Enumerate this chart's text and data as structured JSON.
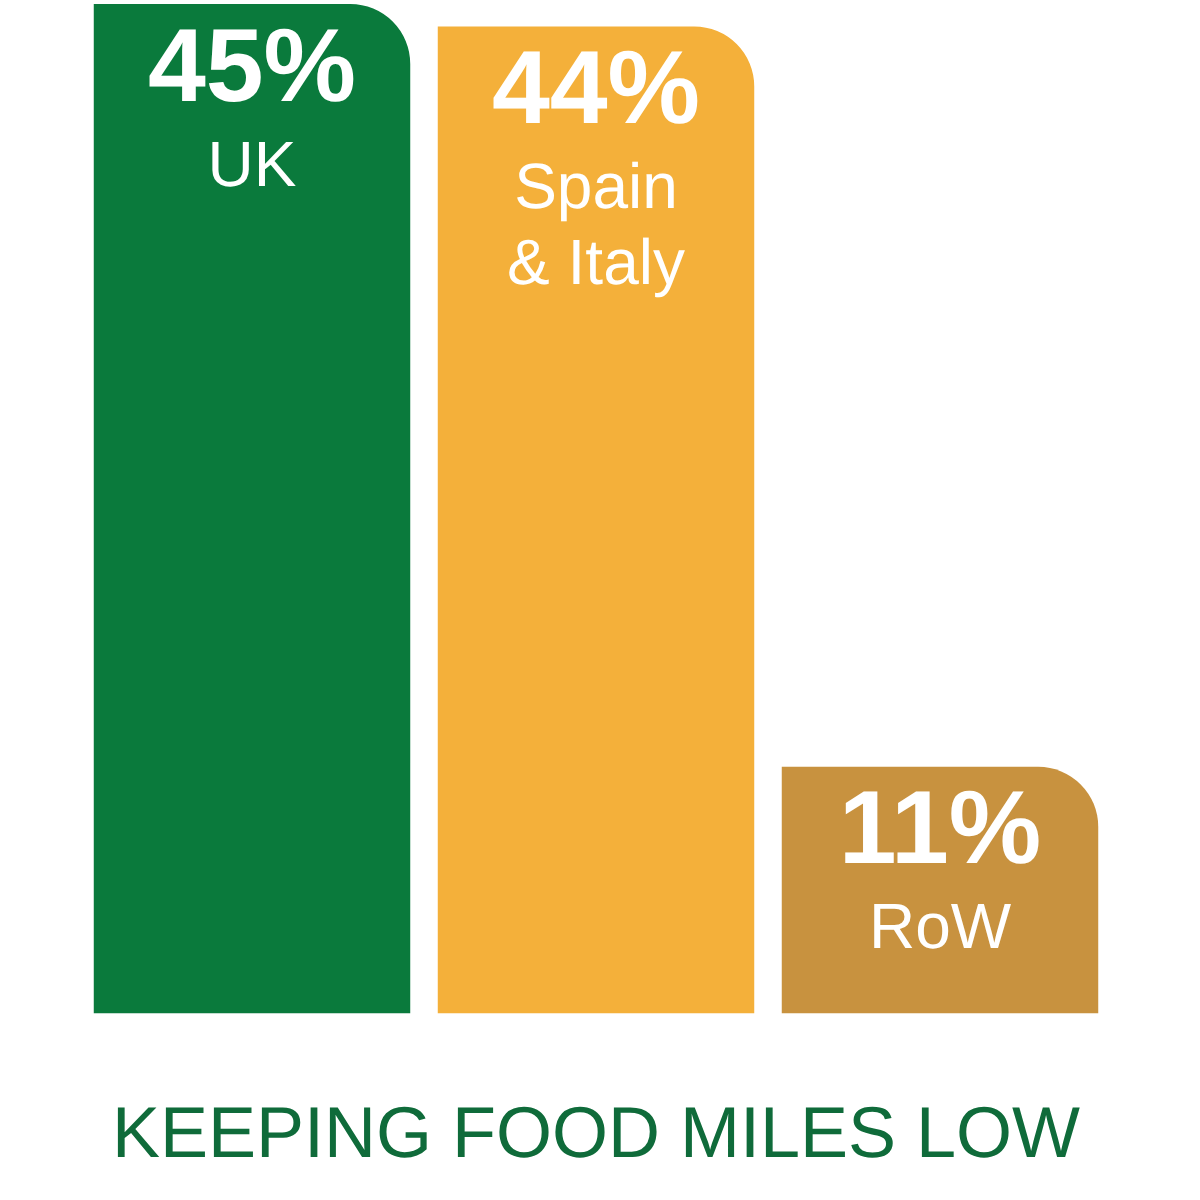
{
  "chart_data": {
    "type": "bar",
    "title": "KEEPING FOOD MILES LOW",
    "categories": [
      "UK",
      "Spain & Italy",
      "RoW"
    ],
    "values": [
      45,
      44,
      11
    ],
    "colors": [
      "#0a7a3c",
      "#f4b03a",
      "#c8923f"
    ],
    "value_labels": [
      "45%",
      "44%",
      "11%"
    ],
    "legend": false
  }
}
